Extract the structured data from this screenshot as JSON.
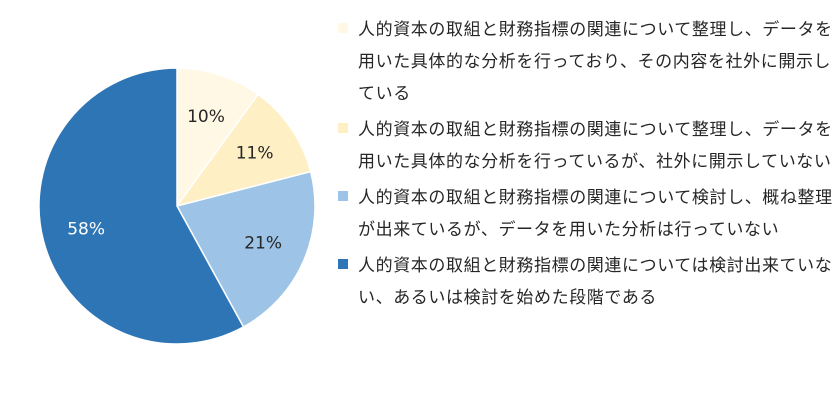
{
  "chart_data": {
    "type": "pie",
    "slices": [
      {
        "label": "人的資本の取組と財務指標の関連について整理し、データを用いた具体的な分析を行っており、その内容を社外に開示している",
        "value": 10,
        "display": "10%",
        "color": "#FFF8E5",
        "text_color": "#262626"
      },
      {
        "label": "人的資本の取組と財務指標の関連について整理し、データを用いた具体的な分析を行っているが、社外に開示していない",
        "value": 11,
        "display": "11%",
        "color": "#FFEFC5",
        "text_color": "#262626"
      },
      {
        "label": "人的資本の取組と財務指標の関連について検討し、概ね整理が出来ているが、データを用いた分析は行っていない",
        "value": 21,
        "display": "21%",
        "color": "#9DC3E6",
        "text_color": "#262626"
      },
      {
        "label": "人的資本の取組と財務指標の関連については検討出来ていない、あるいは検討を始めた段階である",
        "value": 58,
        "display": "58%",
        "color": "#2E75B6",
        "text_color": "#ffffff"
      }
    ],
    "start_angle_deg": 0,
    "direction": "clockwise",
    "legend": "right"
  }
}
